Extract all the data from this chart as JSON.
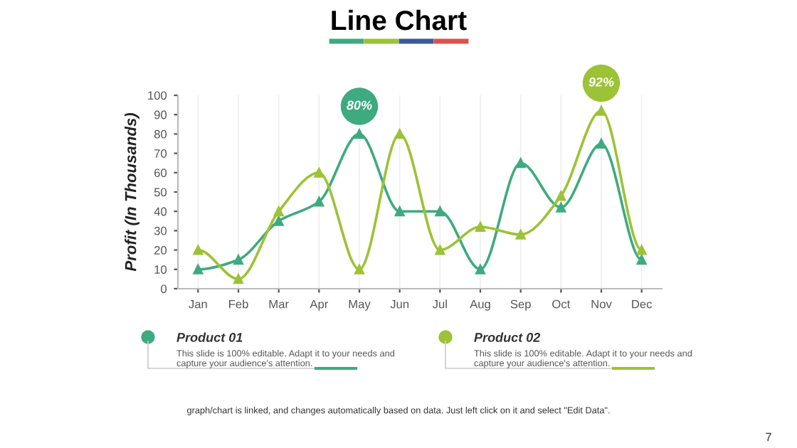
{
  "chart_data": {
    "type": "line",
    "title": "Line Chart",
    "ylabel": "Profit (In Thousands)",
    "categories": [
      "Jan",
      "Feb",
      "Mar",
      "Apr",
      "May",
      "Jun",
      "Jul",
      "Aug",
      "Sep",
      "Oct",
      "Nov",
      "Dec"
    ],
    "series": [
      {
        "name": "Product 01",
        "color": "#3eaa80",
        "values": [
          10,
          15,
          35,
          45,
          80,
          40,
          40,
          10,
          65,
          42,
          75,
          15
        ]
      },
      {
        "name": "Product 02",
        "color": "#9cc236",
        "values": [
          20,
          5,
          40,
          60,
          10,
          80,
          20,
          32,
          28,
          48,
          92,
          20
        ]
      }
    ],
    "ylim": [
      0,
      100
    ],
    "yticks": [
      0,
      10,
      20,
      30,
      40,
      50,
      60,
      70,
      80,
      90,
      100
    ],
    "grid": "x",
    "legend": "bottom",
    "marker": "triangle",
    "line_style": "solid",
    "annotations": [
      {
        "text": "80%",
        "x": "May",
        "y": 80
      },
      {
        "text": "92%",
        "x": "Nov",
        "y": 92
      },
      "This slide is 100% editable. Adapt it to your needs and capture your audience's attention.",
      "This slide is 100% editable. Adapt it to your needs and capture your audience's attention.",
      "graph/chart is linked, and changes automatically based on data. Just left click on it and select \"Edit Data\".",
      "7"
    ]
  }
}
